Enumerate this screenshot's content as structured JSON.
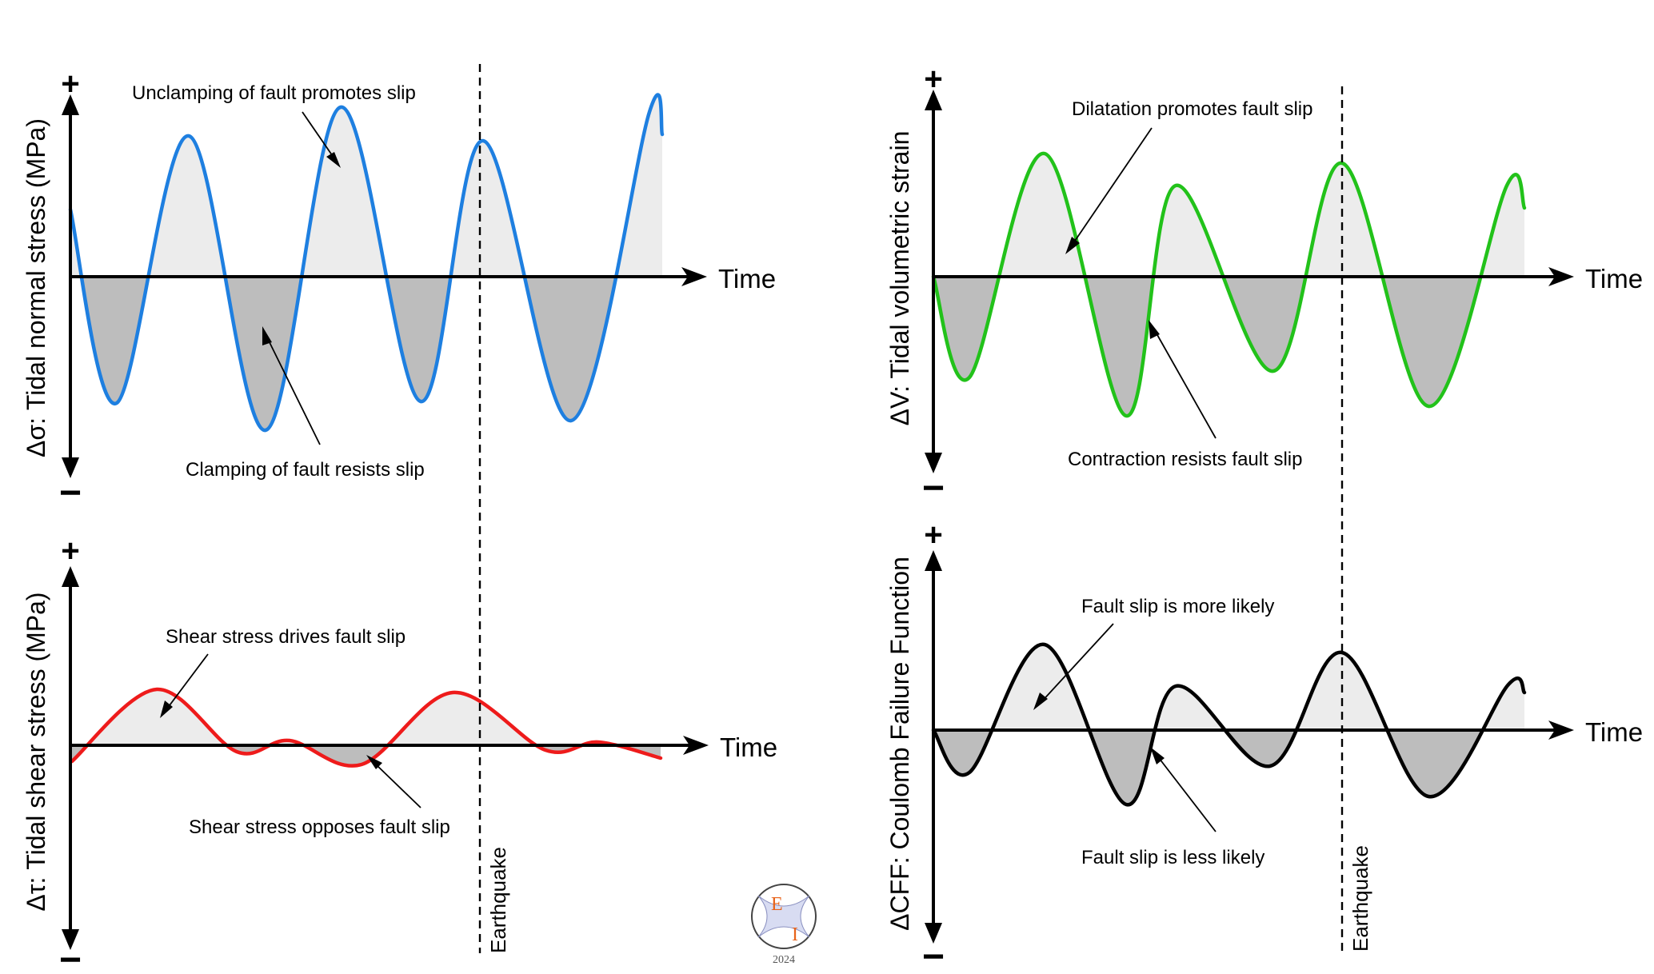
{
  "x_axis_label": "Time",
  "sign_plus": "+",
  "sign_minus": "−",
  "earthquake_label": "Earthquake",
  "logo": {
    "letter_top": "E",
    "letter_bottom": "I",
    "year": "2024"
  },
  "colors": {
    "normal_stress": "#1e7fe0",
    "volumetric_strain": "#22c21a",
    "shear_stress": "#ee1b1b",
    "coulomb": "#000000",
    "positive_fill": "#ececec",
    "negative_fill": "#bdbdbd",
    "logo_accent": "#e8631a"
  },
  "panels": [
    {
      "id": "normal",
      "ylabel": "Δσ: Tidal normal stress  (MPa)",
      "annotation_top": "Unclamping of fault promotes slip",
      "annotation_bottom": "Clamping of fault resists slip"
    },
    {
      "id": "volumetric",
      "ylabel": "ΔV: Tidal volumetric strain",
      "annotation_top": "Dilatation promotes fault slip",
      "annotation_bottom": "Contraction resists fault slip"
    },
    {
      "id": "shear",
      "ylabel": "Δτ: Tidal shear stress (MPa)",
      "annotation_top": "Shear stress drives fault slip",
      "annotation_bottom": "Shear stress opposes fault slip"
    },
    {
      "id": "coulomb",
      "ylabel": "ΔCFF: Coulomb Failure Function",
      "annotation_top": "Fault slip is more likely",
      "annotation_bottom": "Fault slip is less likely"
    }
  ]
}
